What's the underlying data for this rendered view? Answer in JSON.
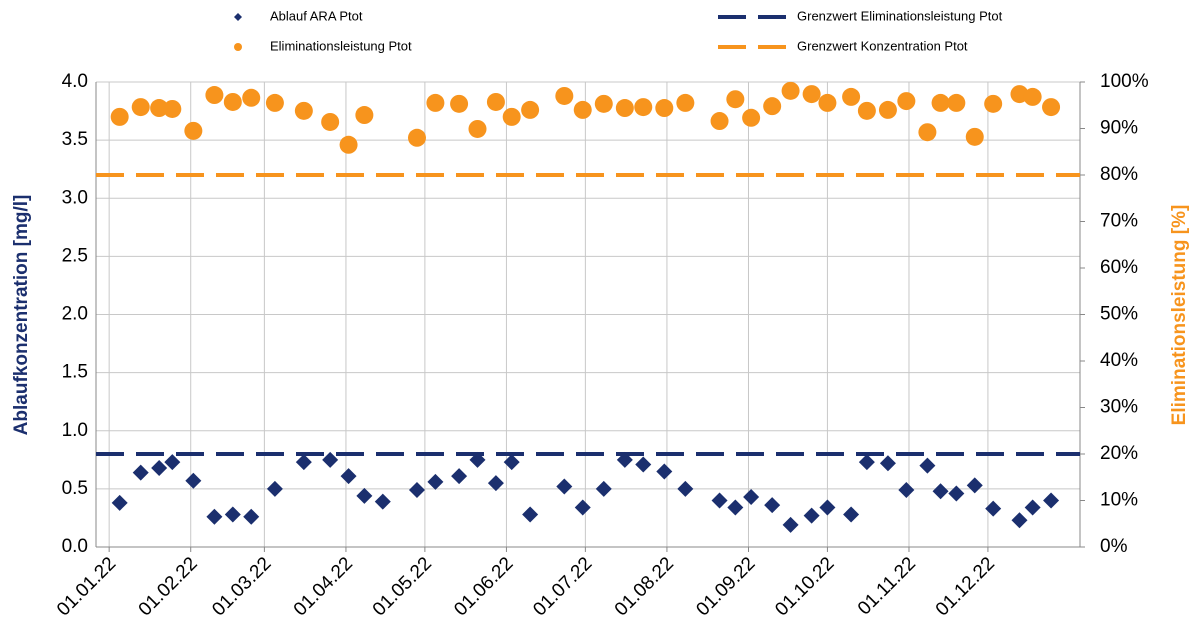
{
  "chart_data": {
    "type": "scatter",
    "y_label": "Ablaufkonzentration [mg/l]",
    "y2_label": "Eliminationsleistung [%]",
    "x": [
      "05.01.22",
      "13.01.22",
      "20.01.22",
      "25.01.22",
      "02.02.22",
      "10.02.22",
      "17.02.22",
      "24.02.22",
      "05.03.22",
      "16.03.22",
      "26.03.22",
      "02.04.22",
      "08.04.22",
      "15.04.22",
      "28.04.22",
      "05.05.22",
      "14.05.22",
      "21.05.22",
      "28.05.22",
      "03.06.22",
      "10.06.22",
      "23.06.22",
      "30.06.22",
      "08.07.22",
      "16.07.22",
      "23.07.22",
      "31.07.22",
      "08.08.22",
      "21.08.22",
      "27.08.22",
      "02.09.22",
      "10.09.22",
      "17.09.22",
      "25.09.22",
      "01.10.22",
      "10.10.22",
      "16.10.22",
      "24.10.22",
      "31.10.22",
      "08.11.22",
      "13.11.22",
      "19.11.22",
      "26.11.22",
      "03.12.22",
      "13.12.22",
      "18.12.22",
      "25.12.22"
    ],
    "series": [
      {
        "name": "Ablauf ARA Ptot",
        "color": "#1b2f6e",
        "marker": "diamond",
        "axis": "y",
        "values": [
          0.38,
          0.64,
          0.68,
          0.73,
          0.57,
          0.26,
          0.28,
          0.26,
          0.5,
          0.73,
          0.75,
          0.61,
          0.44,
          0.39,
          0.49,
          0.56,
          0.61,
          0.75,
          0.55,
          0.73,
          0.28,
          0.52,
          0.34,
          0.5,
          0.75,
          0.71,
          0.65,
          0.5,
          0.4,
          0.34,
          0.43,
          0.36,
          0.19,
          0.27,
          0.34,
          0.28,
          0.73,
          0.72,
          0.49,
          0.7,
          0.48,
          0.46,
          0.53,
          0.33,
          0.23,
          0.34,
          0.4
        ]
      },
      {
        "name": "Eliminationsleistung Ptot",
        "color": "#f7941d",
        "marker": "circle",
        "axis": "y2",
        "values": [
          92.5,
          94.6,
          94.4,
          94.2,
          89.5,
          97.2,
          95.7,
          96.6,
          95.5,
          93.8,
          91.4,
          86.5,
          92.9,
          null,
          88.0,
          95.5,
          95.3,
          89.9,
          95.7,
          92.5,
          94.0,
          97.0,
          94.0,
          95.3,
          94.4,
          94.6,
          94.4,
          95.5,
          91.6,
          96.3,
          92.3,
          94.8,
          98.1,
          97.4,
          95.5,
          96.8,
          93.8,
          94.0,
          95.9,
          89.2,
          95.5,
          95.5,
          88.2,
          95.3,
          97.4,
          96.8,
          94.6
        ]
      }
    ],
    "reference_lines": [
      {
        "name": "Grenzwert Eliminationsleistung Ptot",
        "color": "#1b2f6e",
        "value": 0.8,
        "axis": "y"
      },
      {
        "name": "Grenzwert Konzentration Ptot",
        "color": "#f7941d",
        "value": 80,
        "axis": "y2"
      }
    ],
    "xlim": [
      "27.12.21",
      "05.01.23"
    ],
    "xticks": [
      "01.01.22",
      "01.02.22",
      "01.03.22",
      "01.04.22",
      "01.05.22",
      "01.06.22",
      "01.07.22",
      "01.08.22",
      "01.09.22",
      "01.10.22",
      "01.11.22",
      "01.12.22"
    ],
    "ylim": [
      0,
      4
    ],
    "yticks": [
      {
        "value": 0,
        "label": "0.0"
      },
      {
        "value": 0.5,
        "label": "0.5"
      },
      {
        "value": 1,
        "label": "1.0"
      },
      {
        "value": 1.5,
        "label": "1.5"
      },
      {
        "value": 2,
        "label": "2.0"
      },
      {
        "value": 2.5,
        "label": "2.5"
      },
      {
        "value": 3,
        "label": "3.0"
      },
      {
        "value": 3.5,
        "label": "3.5"
      },
      {
        "value": 4,
        "label": "4.0"
      }
    ],
    "y2lim": [
      0,
      100
    ],
    "y2ticks": [
      {
        "value": 0,
        "label": "0%"
      },
      {
        "value": 10,
        "label": "10%"
      },
      {
        "value": 20,
        "label": "20%"
      },
      {
        "value": 30,
        "label": "30%"
      },
      {
        "value": 40,
        "label": "40%"
      },
      {
        "value": 50,
        "label": "50%"
      },
      {
        "value": 60,
        "label": "60%"
      },
      {
        "value": 70,
        "label": "70%"
      },
      {
        "value": 80,
        "label": "80%"
      },
      {
        "value": 90,
        "label": "90%"
      },
      {
        "value": 100,
        "label": "100%"
      }
    ],
    "grid": true
  }
}
